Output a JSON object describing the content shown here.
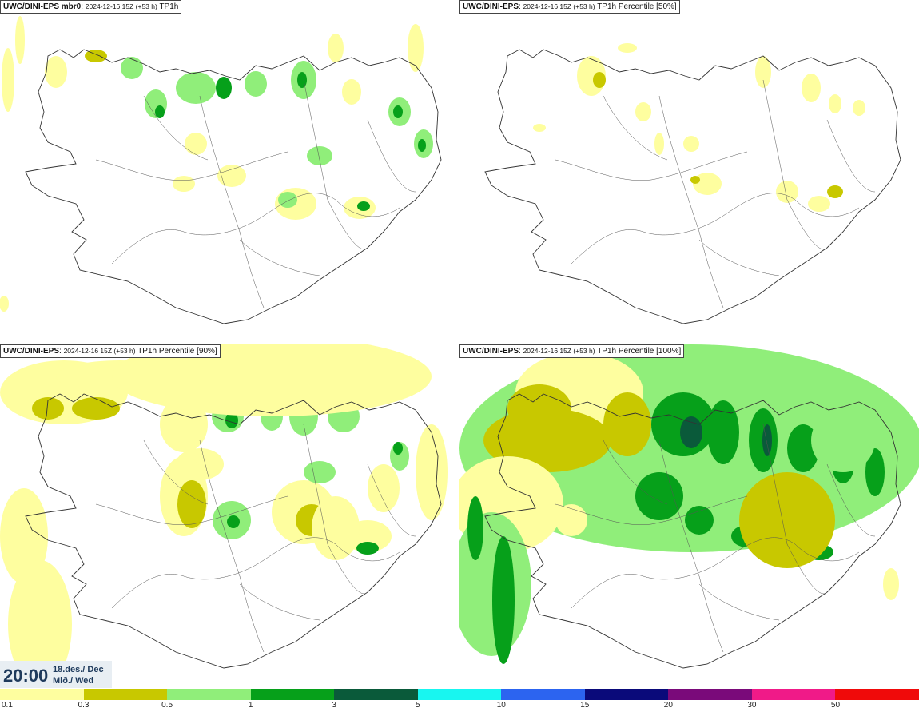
{
  "panels": [
    {
      "model": "UWC/DINI-EPS mbr0",
      "meta": "2024-12-16 15Z (+53 h)",
      "product": "TP1h",
      "level": 1
    },
    {
      "model": "UWC/DINI-EPS",
      "meta": "2024-12-16 15Z (+53 h)",
      "product": "TP1h Percentile [50%]",
      "level": 0
    },
    {
      "model": "UWC/DINI-EPS",
      "meta": "2024-12-16 15Z (+53 h)",
      "product": "TP1h Percentile [90%]",
      "level": 2
    },
    {
      "model": "UWC/DINI-EPS",
      "meta": "2024-12-16 15Z (+53 h)",
      "product": "TP1h Percentile [100%]",
      "level": 3
    }
  ],
  "time": {
    "hour": "20:00",
    "date_line1": "18.des./ Dec",
    "date_line2": "Mið./ Wed"
  },
  "colorbar": {
    "colors": [
      "#fefe9f",
      "#c8c800",
      "#90ee7a",
      "#06a01a",
      "#0a5a3a",
      "#18f6f0",
      "#2c64f0",
      "#0a0a7a",
      "#7a0a7a",
      "#f01a88",
      "#f00a0a"
    ],
    "ticks": [
      "0.1",
      "0.3",
      "0.5",
      "1",
      "3",
      "5",
      "10",
      "15",
      "20",
      "30",
      "50"
    ]
  },
  "palette": {
    "yellow": "#fefe9f",
    "olive": "#c8c800",
    "lightgreen": "#90ee7a",
    "green": "#06a01a",
    "darkgreen": "#0a5a3a",
    "border": "#333333"
  }
}
